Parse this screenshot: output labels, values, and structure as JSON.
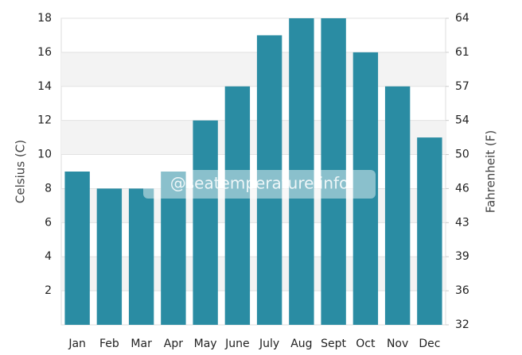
{
  "chart_data": {
    "type": "bar",
    "categories": [
      "Jan",
      "Feb",
      "Mar",
      "Apr",
      "May",
      "June",
      "July",
      "Aug",
      "Sept",
      "Oct",
      "Nov",
      "Dec"
    ],
    "values": [
      9,
      8,
      8,
      9,
      12,
      14,
      17,
      18,
      18,
      16,
      14,
      11
    ],
    "color": "#2a8ca3",
    "ylabel": "Celsius (C)",
    "y2label": "Fahrenheit (F)",
    "ylim": [
      0,
      18
    ],
    "yticks": [
      2,
      4,
      6,
      8,
      10,
      12,
      14,
      16,
      18
    ],
    "y2lim": [
      32,
      64.4
    ],
    "y2ticks": [
      32,
      {
        "value": 35.6,
        "label": "36"
      },
      {
        "value": 39.2,
        "label": "39"
      },
      {
        "value": 42.8,
        "label": "43"
      },
      {
        "value": 46.4,
        "label": "46"
      },
      50,
      {
        "value": 53.6,
        "label": "54"
      },
      {
        "value": 57.2,
        "label": "57"
      },
      {
        "value": 60.8,
        "label": "61"
      },
      {
        "value": 64.4,
        "label": "64"
      }
    ],
    "grid": true,
    "watermark": "@seatemperature.info"
  }
}
